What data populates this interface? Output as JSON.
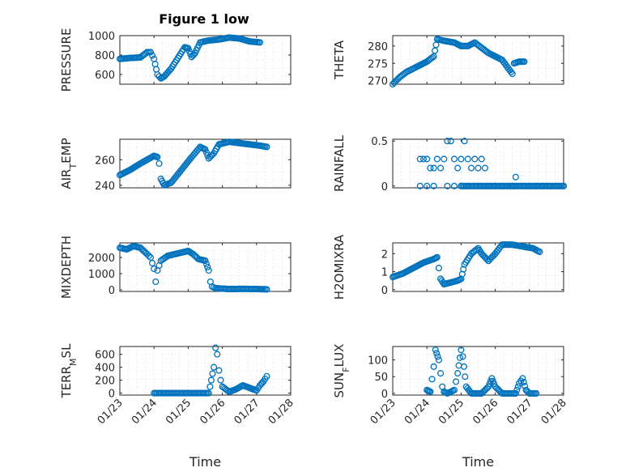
{
  "figure": {
    "title": "Figure 1 low"
  },
  "chart_data": [
    {
      "type": "scatter",
      "title": "Figure 1 low",
      "ylabel": "PRESSURE",
      "xlabel": "",
      "x_ticks": [
        "01/23",
        "01/24",
        "01/25",
        "01/26",
        "01/27",
        "01/28"
      ],
      "xlim": [
        0,
        5
      ],
      "ylim": [
        500,
        1000
      ],
      "yticks": [
        600,
        800,
        1000
      ],
      "grid": true,
      "marker_color": "#0072BD",
      "points": [
        [
          0.0,
          760
        ],
        [
          0.3,
          770
        ],
        [
          0.6,
          775
        ],
        [
          0.8,
          830
        ],
        [
          0.9,
          830
        ],
        [
          1.0,
          760
        ],
        [
          1.1,
          600
        ],
        [
          1.2,
          560
        ],
        [
          1.3,
          580
        ],
        [
          1.5,
          660
        ],
        [
          1.7,
          770
        ],
        [
          1.9,
          880
        ],
        [
          2.0,
          870
        ],
        [
          2.1,
          780
        ],
        [
          2.2,
          820
        ],
        [
          2.35,
          930
        ],
        [
          2.6,
          950
        ],
        [
          2.9,
          960
        ],
        [
          3.2,
          980
        ],
        [
          3.5,
          970
        ],
        [
          3.8,
          940
        ],
        [
          4.1,
          930
        ]
      ]
    },
    {
      "type": "scatter",
      "title": "",
      "ylabel": "THETA",
      "xlabel": "",
      "x_ticks": [
        "01/23",
        "01/24",
        "01/25",
        "01/26",
        "01/27",
        "01/28"
      ],
      "xlim": [
        0,
        5
      ],
      "ylim": [
        269,
        283
      ],
      "yticks": [
        270,
        275,
        280
      ],
      "grid": true,
      "marker_color": "#0072BD",
      "points": [
        [
          0.0,
          269
        ],
        [
          0.2,
          271
        ],
        [
          0.4,
          272.5
        ],
        [
          0.7,
          274
        ],
        [
          1.0,
          275.5
        ],
        [
          1.2,
          277
        ],
        [
          1.3,
          282
        ],
        [
          1.5,
          281.5
        ],
        [
          1.8,
          281
        ],
        [
          2.0,
          280
        ],
        [
          2.2,
          280
        ],
        [
          2.4,
          281
        ],
        [
          2.6,
          279.5
        ],
        [
          2.8,
          278
        ],
        [
          3.0,
          277
        ],
        [
          3.2,
          276
        ],
        [
          3.35,
          274
        ],
        [
          3.5,
          272
        ],
        [
          3.55,
          275
        ],
        [
          3.7,
          275.5
        ],
        [
          3.85,
          275.5
        ]
      ]
    },
    {
      "type": "scatter",
      "title": "",
      "ylabel": "AIR_TEMP",
      "xlabel": "",
      "x_ticks": [
        "01/23",
        "01/24",
        "01/25",
        "01/26",
        "01/27",
        "01/28"
      ],
      "xlim": [
        0,
        5
      ],
      "ylim": [
        238,
        276
      ],
      "yticks": [
        240,
        260
      ],
      "grid": true,
      "marker_color": "#0072BD",
      "points": [
        [
          0.0,
          248
        ],
        [
          0.3,
          252
        ],
        [
          0.6,
          257
        ],
        [
          0.8,
          260
        ],
        [
          1.0,
          263
        ],
        [
          1.1,
          262
        ],
        [
          1.15,
          257
        ],
        [
          1.2,
          245
        ],
        [
          1.3,
          240
        ],
        [
          1.5,
          242
        ],
        [
          1.8,
          252
        ],
        [
          2.1,
          262
        ],
        [
          2.35,
          270
        ],
        [
          2.5,
          268
        ],
        [
          2.6,
          261
        ],
        [
          2.75,
          265
        ],
        [
          2.9,
          272
        ],
        [
          3.2,
          274
        ],
        [
          3.5,
          273
        ],
        [
          3.8,
          272
        ],
        [
          4.1,
          271
        ],
        [
          4.3,
          270
        ]
      ]
    },
    {
      "type": "scatter",
      "title": "",
      "ylabel": "RAINFALL",
      "xlabel": "",
      "x_ticks": [
        "01/23",
        "01/24",
        "01/25",
        "01/26",
        "01/27",
        "01/28"
      ],
      "xlim": [
        0,
        5
      ],
      "ylim": [
        -0.02,
        0.52
      ],
      "yticks": [
        0,
        0.5
      ],
      "grid": true,
      "marker_color": "#0072BD",
      "points": [
        [
          0.8,
          0.3
        ],
        [
          0.9,
          0.3
        ],
        [
          1.0,
          0.3
        ],
        [
          1.1,
          0.2
        ],
        [
          1.2,
          0.2
        ],
        [
          1.3,
          0.3
        ],
        [
          1.4,
          0.2
        ],
        [
          1.5,
          0.3
        ],
        [
          1.6,
          0.5
        ],
        [
          1.7,
          0.5
        ],
        [
          1.8,
          0.3
        ],
        [
          1.9,
          0.2
        ],
        [
          2.0,
          0.3
        ],
        [
          2.1,
          0.5
        ],
        [
          2.2,
          0.3
        ],
        [
          2.3,
          0.2
        ],
        [
          2.4,
          0.3
        ],
        [
          2.5,
          0.2
        ],
        [
          2.6,
          0.3
        ],
        [
          2.7,
          0.2
        ],
        [
          0.8,
          0
        ],
        [
          1.0,
          0
        ],
        [
          1.2,
          0
        ],
        [
          1.6,
          0
        ],
        [
          1.8,
          0
        ],
        [
          2.0,
          0
        ],
        [
          2.2,
          0
        ],
        [
          2.6,
          0
        ],
        [
          2.8,
          0
        ],
        [
          3.0,
          0
        ],
        [
          3.2,
          0
        ],
        [
          3.4,
          0
        ],
        [
          3.5,
          0
        ],
        [
          3.6,
          0.1
        ],
        [
          3.8,
          0
        ],
        [
          4.0,
          0
        ],
        [
          4.2,
          0
        ],
        [
          4.4,
          0
        ],
        [
          4.6,
          0
        ],
        [
          4.8,
          0
        ],
        [
          5.0,
          0
        ]
      ]
    },
    {
      "type": "scatter",
      "title": "",
      "ylabel": "MIXDEPTH",
      "xlabel": "",
      "x_ticks": [
        "01/23",
        "01/24",
        "01/25",
        "01/26",
        "01/27",
        "01/28"
      ],
      "xlim": [
        0,
        5
      ],
      "ylim": [
        -100,
        2900
      ],
      "yticks": [
        0,
        1000,
        2000
      ],
      "grid": true,
      "marker_color": "#0072BD",
      "points": [
        [
          0.0,
          2600
        ],
        [
          0.2,
          2500
        ],
        [
          0.4,
          2700
        ],
        [
          0.6,
          2600
        ],
        [
          0.8,
          2200
        ],
        [
          0.9,
          2000
        ],
        [
          1.0,
          1300
        ],
        [
          1.05,
          500
        ],
        [
          1.1,
          1200
        ],
        [
          1.2,
          1800
        ],
        [
          1.4,
          2100
        ],
        [
          1.6,
          2200
        ],
        [
          1.8,
          2300
        ],
        [
          2.0,
          2400
        ],
        [
          2.15,
          2200
        ],
        [
          2.3,
          1900
        ],
        [
          2.5,
          1800
        ],
        [
          2.6,
          1200
        ],
        [
          2.65,
          500
        ],
        [
          2.7,
          200
        ],
        [
          2.8,
          100
        ],
        [
          3.2,
          50
        ],
        [
          3.6,
          60
        ],
        [
          4.0,
          50
        ],
        [
          4.3,
          30
        ]
      ]
    },
    {
      "type": "scatter",
      "title": "",
      "ylabel": "H2OMIXRA",
      "xlabel": "",
      "x_ticks": [
        "01/23",
        "01/24",
        "01/25",
        "01/26",
        "01/27",
        "01/28"
      ],
      "xlim": [
        0,
        5
      ],
      "ylim": [
        -0.1,
        2.6
      ],
      "yticks": [
        0,
        1,
        2
      ],
      "grid": true,
      "marker_color": "#0072BD",
      "points": [
        [
          0.0,
          0.7
        ],
        [
          0.3,
          0.9
        ],
        [
          0.6,
          1.2
        ],
        [
          0.9,
          1.5
        ],
        [
          1.2,
          1.7
        ],
        [
          1.3,
          1.8
        ],
        [
          1.4,
          0.6
        ],
        [
          1.5,
          0.3
        ],
        [
          1.7,
          0.4
        ],
        [
          1.9,
          0.5
        ],
        [
          2.0,
          0.6
        ],
        [
          2.1,
          1.4
        ],
        [
          2.3,
          2.0
        ],
        [
          2.5,
          2.3
        ],
        [
          2.6,
          2.0
        ],
        [
          2.8,
          1.6
        ],
        [
          3.0,
          2.0
        ],
        [
          3.2,
          2.5
        ],
        [
          3.5,
          2.5
        ],
        [
          3.8,
          2.4
        ],
        [
          4.1,
          2.3
        ],
        [
          4.3,
          2.1
        ]
      ]
    },
    {
      "type": "scatter",
      "title": "",
      "ylabel": "TERR_MSL",
      "xlabel": "Time",
      "x_ticks": [
        "01/23",
        "01/24",
        "01/25",
        "01/26",
        "01/27",
        "01/28"
      ],
      "xlim": [
        0,
        5
      ],
      "ylim": [
        -30,
        720
      ],
      "yticks": [
        0,
        200,
        400,
        600
      ],
      "grid": true,
      "marker_color": "#0072BD",
      "points": [
        [
          1.0,
          0
        ],
        [
          1.4,
          0
        ],
        [
          1.8,
          0
        ],
        [
          2.2,
          0
        ],
        [
          2.6,
          0
        ],
        [
          2.75,
          400
        ],
        [
          2.8,
          700
        ],
        [
          2.85,
          600
        ],
        [
          2.9,
          350
        ],
        [
          2.95,
          200
        ],
        [
          3.0,
          100
        ],
        [
          3.2,
          20
        ],
        [
          3.4,
          60
        ],
        [
          3.6,
          120
        ],
        [
          3.8,
          80
        ],
        [
          4.0,
          40
        ],
        [
          4.1,
          120
        ],
        [
          4.2,
          180
        ],
        [
          4.3,
          260
        ]
      ]
    },
    {
      "type": "scatter",
      "title": "",
      "ylabel": "SUN_FLUX",
      "xlabel": "Time",
      "x_ticks": [
        "01/23",
        "01/24",
        "01/25",
        "01/26",
        "01/27",
        "01/28"
      ],
      "xlim": [
        0,
        5
      ],
      "ylim": [
        -5,
        140
      ],
      "yticks": [
        0,
        50,
        100
      ],
      "grid": true,
      "marker_color": "#0072BD",
      "points": [
        [
          1.0,
          10
        ],
        [
          1.1,
          5
        ],
        [
          1.2,
          80
        ],
        [
          1.25,
          130
        ],
        [
          1.35,
          100
        ],
        [
          1.45,
          20
        ],
        [
          1.5,
          5
        ],
        [
          1.6,
          0
        ],
        [
          1.8,
          10
        ],
        [
          1.9,
          60
        ],
        [
          2.0,
          130
        ],
        [
          2.05,
          110
        ],
        [
          2.15,
          20
        ],
        [
          2.3,
          0
        ],
        [
          2.6,
          0
        ],
        [
          2.8,
          20
        ],
        [
          2.9,
          45
        ],
        [
          3.0,
          20
        ],
        [
          3.2,
          0
        ],
        [
          3.6,
          0
        ],
        [
          3.7,
          30
        ],
        [
          3.8,
          45
        ],
        [
          3.9,
          10
        ],
        [
          4.0,
          0
        ],
        [
          4.2,
          0
        ]
      ]
    }
  ]
}
